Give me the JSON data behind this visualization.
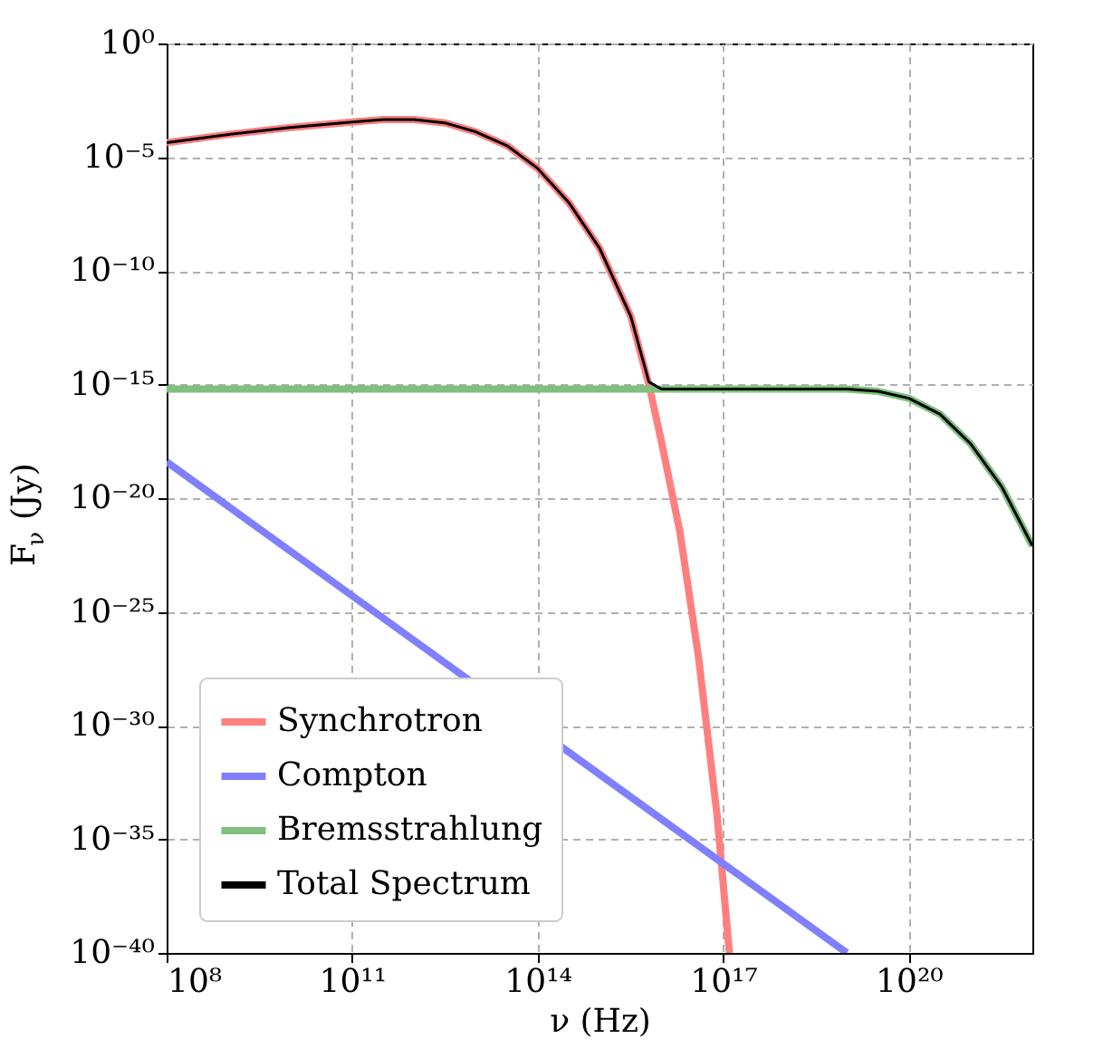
{
  "chart_data": {
    "type": "line",
    "xlabel": "ν (Hz)",
    "ylabel": "F$_{ν}$ (Jy)",
    "log": "xy",
    "grid": true,
    "legend": "bottom left",
    "marker": "none",
    "line_style": "solid",
    "xlim": [
      100000000.0,
      1e+22
    ],
    "ylim": [
      1e-40,
      1
    ],
    "xticks": [
      {
        "value": 100000000.0,
        "label": "10⁸"
      },
      {
        "value": 100000000000.0,
        "label": "10¹¹"
      },
      {
        "value": 100000000000000.0,
        "label": "10¹⁴"
      },
      {
        "value": 1e+17,
        "label": "10¹⁷"
      },
      {
        "value": 1e+20,
        "label": "10²⁰"
      }
    ],
    "yticks": [
      {
        "value": 1e-40,
        "label": "10⁻⁴⁰"
      },
      {
        "value": 1e-35,
        "label": "10⁻³⁵"
      },
      {
        "value": 1e-30,
        "label": "10⁻³⁰"
      },
      {
        "value": 1e-25,
        "label": "10⁻²⁵"
      },
      {
        "value": 1e-20,
        "label": "10⁻²⁰"
      },
      {
        "value": 1e-15,
        "label": "10⁻¹⁵"
      },
      {
        "value": 1e-10,
        "label": "10⁻¹⁰"
      },
      {
        "value": 1e-05,
        "label": "10⁻⁵"
      },
      {
        "value": 1,
        "label": "10⁰"
      }
    ],
    "series": [
      {
        "name": "Synchrotron",
        "color": "#ff7f7f",
        "x": [
          100000000.0,
          1000000000.0,
          10000000000.0,
          100000000000.0,
          320000000000.0,
          1000000000000.0,
          3200000000000.0,
          10000000000000.0,
          32000000000000.0,
          100000000000000.0,
          320000000000000.0,
          1000000000000000.0,
          3200000000000000.0,
          6300000000000000.0,
          1e+16,
          2e+16,
          4e+16,
          8e+16,
          1.26e+17
        ],
        "values": [
          4.3e-05,
          0.0001,
          0.0002,
          0.00035,
          0.00045,
          0.00045,
          0.00032,
          0.00013,
          3.2e-05,
          3.2e-06,
          1e-07,
          1e-09,
          1e-12,
          1e-15,
          3.2e-18,
          3.2e-22,
          1e-27,
          1e-34,
          1e-40
        ]
      },
      {
        "name": "Compton",
        "color": "#7f7fff",
        "x": [
          100000000.0,
          1e+19
        ],
        "values": [
          4e-19,
          1e-40
        ]
      },
      {
        "name": "Bremsstrahlung",
        "color": "#7fbf7f",
        "x": [
          100000000.0,
          1e+19,
          3.2e+19,
          1e+20,
          3.2e+20,
          1e+21,
          3.2e+21,
          1e+22
        ],
        "values": [
          6.3e-16,
          6.3e-16,
          5e-16,
          2.5e-16,
          5e-17,
          2.5e-18,
          3.2e-20,
          8e-23
        ]
      },
      {
        "name": "Total Spectrum",
        "color": "#000000",
        "x": [
          100000000.0,
          1000000000.0,
          10000000000.0,
          100000000000.0,
          320000000000.0,
          1000000000000.0,
          3200000000000.0,
          10000000000000.0,
          32000000000000.0,
          100000000000000.0,
          320000000000000.0,
          1000000000000000.0,
          3200000000000000.0,
          6300000000000000.0,
          1e+16,
          1e+19,
          3.2e+19,
          1e+20,
          3.2e+20,
          1e+21,
          3.2e+21,
          1e+22
        ],
        "values": [
          4.3e-05,
          0.0001,
          0.0002,
          0.00035,
          0.00045,
          0.00045,
          0.00032,
          0.00013,
          3.2e-05,
          3.2e-06,
          1e-07,
          1e-09,
          1e-12,
          1.3e-15,
          6.3e-16,
          6.3e-16,
          5e-16,
          2.5e-16,
          5e-17,
          2.5e-18,
          3.2e-20,
          8e-23
        ]
      }
    ]
  }
}
